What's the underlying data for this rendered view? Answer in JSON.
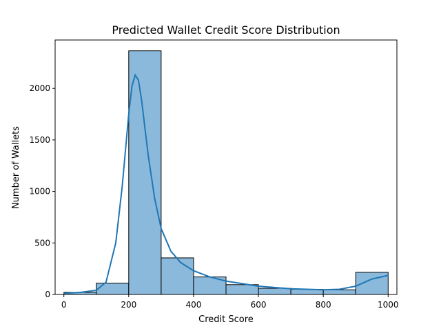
{
  "chart_data": {
    "type": "bar",
    "title": "Predicted Wallet Credit Score Distribution",
    "xlabel": "Credit Score",
    "ylabel": "Number of Wallets",
    "xlim": [
      -27,
      1027
    ],
    "ylim": [
      0,
      2470
    ],
    "xticks": [
      0,
      200,
      400,
      600,
      800,
      1000
    ],
    "yticks": [
      0,
      500,
      1000,
      1500,
      2000
    ],
    "bins": [
      {
        "x0": 0,
        "x1": 100,
        "value": 20
      },
      {
        "x0": 100,
        "x1": 200,
        "value": 110
      },
      {
        "x0": 200,
        "x1": 300,
        "value": 2365
      },
      {
        "x0": 300,
        "x1": 400,
        "value": 355
      },
      {
        "x0": 400,
        "x1": 500,
        "value": 170
      },
      {
        "x0": 500,
        "x1": 600,
        "value": 95
      },
      {
        "x0": 600,
        "x1": 700,
        "value": 60
      },
      {
        "x0": 700,
        "x1": 800,
        "value": 50
      },
      {
        "x0": 800,
        "x1": 900,
        "value": 45
      },
      {
        "x0": 900,
        "x1": 1000,
        "value": 215
      }
    ],
    "kde": {
      "x": [
        0,
        50,
        100,
        130,
        160,
        180,
        200,
        210,
        220,
        230,
        240,
        260,
        280,
        300,
        330,
        360,
        400,
        450,
        500,
        600,
        700,
        800,
        850,
        900,
        950,
        1000
      ],
      "y": [
        10,
        20,
        40,
        120,
        500,
        1050,
        1750,
        2020,
        2130,
        2080,
        1880,
        1350,
        930,
        640,
        420,
        310,
        230,
        170,
        130,
        80,
        55,
        45,
        50,
        80,
        150,
        185
      ]
    },
    "bar_color": "#8bb9dc",
    "line_color": "#1f77b4",
    "grid": false,
    "legend": "none"
  }
}
